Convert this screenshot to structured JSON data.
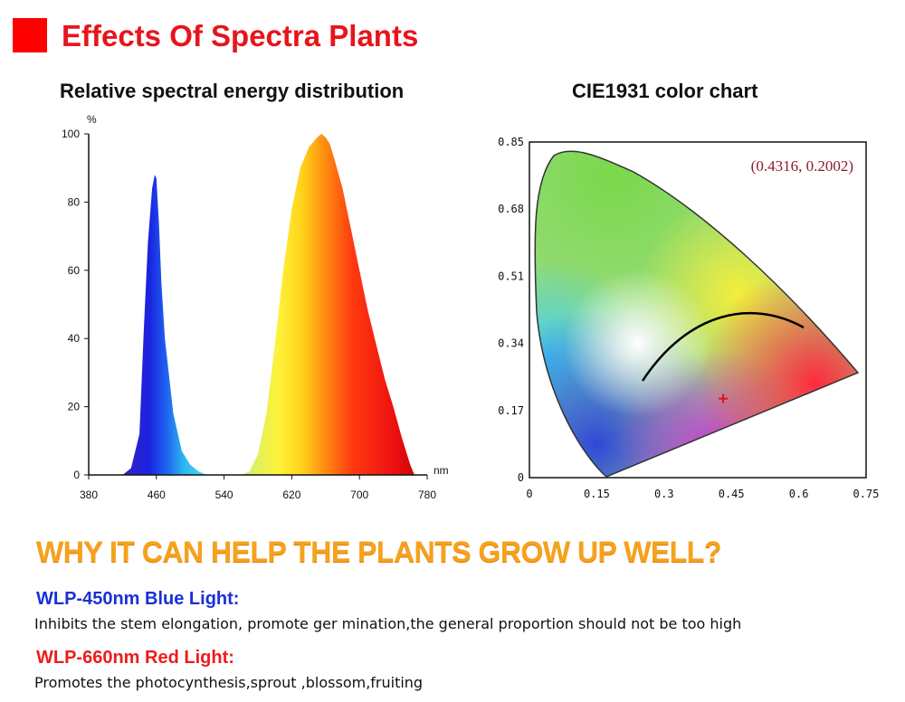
{
  "header": {
    "title": "Effects Of Spectra Plants",
    "accent": "#ff0000"
  },
  "chart_data": [
    {
      "type": "area",
      "title": "Relative spectral energy distribution",
      "xlabel": "nm",
      "ylabel": "%",
      "xlim": [
        380,
        780
      ],
      "ylim": [
        0,
        100
      ],
      "xticks": [
        "380",
        "460",
        "540",
        "620",
        "700",
        "780"
      ],
      "yticks": [
        "0",
        "20",
        "40",
        "60",
        "80",
        "100"
      ],
      "x": [
        420,
        430,
        440,
        445,
        450,
        455,
        458,
        460,
        463,
        466,
        470,
        480,
        490,
        500,
        510,
        520,
        540,
        560,
        570,
        580,
        590,
        600,
        610,
        620,
        630,
        640,
        650,
        655,
        660,
        665,
        670,
        680,
        690,
        700,
        710,
        720,
        730,
        740,
        750,
        760,
        765
      ],
      "values": [
        0,
        2,
        12,
        42,
        68,
        84,
        88,
        87,
        74,
        56,
        40,
        18,
        7,
        3,
        1,
        0,
        0,
        0,
        1,
        6,
        18,
        38,
        60,
        78,
        90,
        96,
        99,
        100,
        99,
        97,
        93,
        84,
        72,
        60,
        48,
        38,
        28,
        20,
        11,
        3,
        0
      ]
    },
    {
      "type": "scatter",
      "title": "CIE1931 color chart",
      "xlim": [
        0,
        0.75
      ],
      "ylim": [
        0,
        0.85
      ],
      "xticks": [
        "0",
        "0.15",
        "0.3",
        "0.45",
        "0.6",
        "0.75"
      ],
      "yticks": [
        "0",
        "0.17",
        "0.34",
        "0.51",
        "0.68",
        "0.85"
      ],
      "point": {
        "x": 0.4316,
        "y": 0.2002,
        "label": "(0.4316, 0.2002)"
      }
    }
  ],
  "section": {
    "headline": "WHY IT CAN HELP THE PLANTS GROW UP WELL?"
  },
  "lights": [
    {
      "heading": "WLP-450nm Blue Light:",
      "desc": "Inhibits the stem elongation, promote ger mination,the general proportion should not be too high",
      "color": "#1b2fd6"
    },
    {
      "heading": "WLP-660nm Red Light:",
      "desc": "Promotes the photocynthesis,sprout ,blossom,fruiting",
      "color": "#ee1b1b"
    }
  ]
}
